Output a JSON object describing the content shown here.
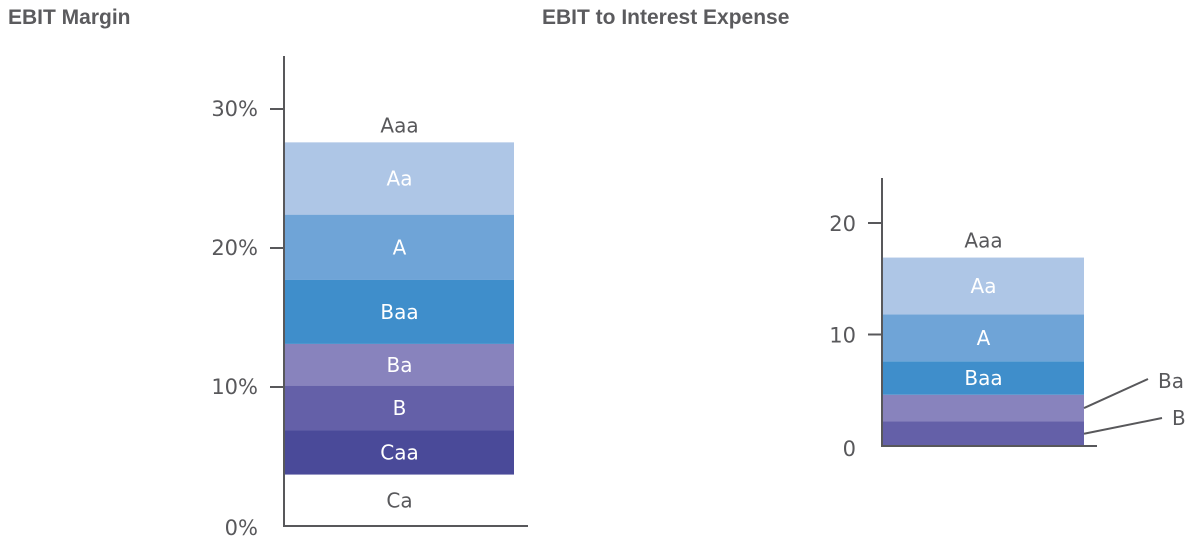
{
  "titles": {
    "left": "EBIT Margin",
    "right": "EBIT to Interest Expense"
  },
  "colors": {
    "Aa": "#aec6e6",
    "A": "#6fa4d7",
    "Baa": "#3f8ecb",
    "Ba": "#8883bd",
    "B": "#6460a8",
    "Caa": "#4a4a99",
    "axis": "#58585b",
    "text_dark": "#58585b",
    "text_light": "#ffffff"
  },
  "chart_data": [
    {
      "type": "bar",
      "title": "EBIT Margin",
      "stacked": true,
      "y_tick_values": [
        0,
        10,
        20,
        30
      ],
      "y_tick_labels": [
        "0%",
        "10%",
        "20%",
        "30%"
      ],
      "ylim": [
        0,
        35
      ],
      "segments": [
        {
          "label": "Ca",
          "from": 0,
          "to": 3.7
        },
        {
          "label": "Caa",
          "from": 3.7,
          "to": 6.9
        },
        {
          "label": "B",
          "from": 6.9,
          "to": 10.1
        },
        {
          "label": "Ba",
          "from": 10.1,
          "to": 13.1
        },
        {
          "label": "Baa",
          "from": 13.1,
          "to": 17.7
        },
        {
          "label": "A",
          "from": 17.7,
          "to": 22.4
        },
        {
          "label": "Aa",
          "from": 22.4,
          "to": 27.6
        },
        {
          "label": "Aaa",
          "from": 27.6,
          "to": 30
        }
      ]
    },
    {
      "type": "bar",
      "title": "EBIT to Interest Expense",
      "stacked": true,
      "y_tick_values": [
        0,
        10,
        20
      ],
      "y_tick_labels": [
        "0",
        "10",
        "20"
      ],
      "ylim": [
        0,
        24
      ],
      "segments": [
        {
          "label": "B",
          "from": 0,
          "to": 2.2
        },
        {
          "label": "Ba",
          "from": 2.2,
          "to": 4.6
        },
        {
          "label": "Baa",
          "from": 4.6,
          "to": 7.6
        },
        {
          "label": "A",
          "from": 7.6,
          "to": 11.8
        },
        {
          "label": "Aa",
          "from": 11.8,
          "to": 16.9
        },
        {
          "label": "Aaa",
          "from": 16.9,
          "to": 20
        }
      ]
    }
  ]
}
